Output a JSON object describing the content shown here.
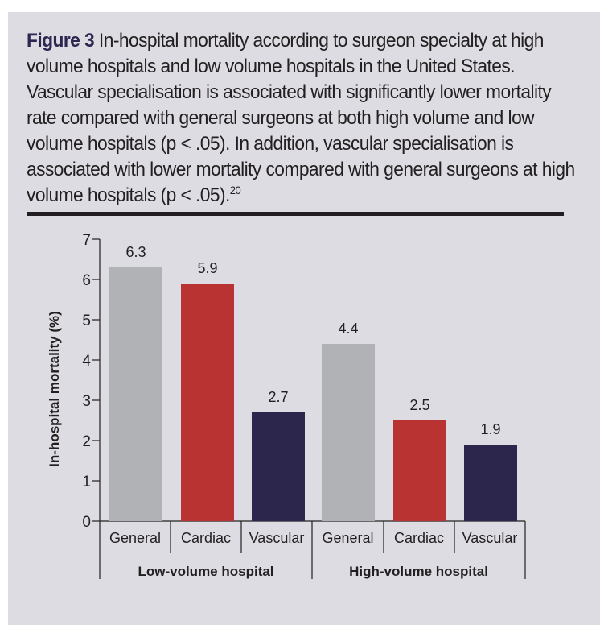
{
  "caption": {
    "figure_label": "Figure 3",
    "text": " In-hospital mortality according to surgeon specialty at high volume hospitals and low volume hospitals in the United States. Vascular specialisation is associated with significantly lower mortality rate compared with general surgeons at both high volume and low volume hospitals (p < .05). In addition, vascular specialisation is associated with lower mortality compared with general surgeons at high volume hospitals (p < .05).",
    "reference": "20"
  },
  "colors": {
    "General": "#b1b2b6",
    "Cardiac": "#b83331",
    "Vascular": "#2d264c",
    "panel_background": "#dddce3",
    "text": "#231f20"
  },
  "chart_data": {
    "type": "bar",
    "title": "In-hospital mortality according to surgeon specialty",
    "xlabel": "",
    "ylabel": "In-hospital mortality (%)",
    "ylim": [
      0,
      7
    ],
    "yticks": [
      0,
      1,
      2,
      3,
      4,
      5,
      6,
      7
    ],
    "grid": false,
    "groups": [
      {
        "name": "Low-volume hospital",
        "categories": [
          "General",
          "Cardiac",
          "Vascular"
        ],
        "values": [
          6.3,
          5.9,
          2.7
        ],
        "labels": [
          "6.3",
          "5.9",
          "2.7"
        ]
      },
      {
        "name": "High-volume hospital",
        "categories": [
          "General",
          "Cardiac",
          "Vascular"
        ],
        "values": [
          4.4,
          2.5,
          1.9
        ],
        "labels": [
          "4.4",
          "2.5",
          "1.9"
        ]
      }
    ]
  }
}
